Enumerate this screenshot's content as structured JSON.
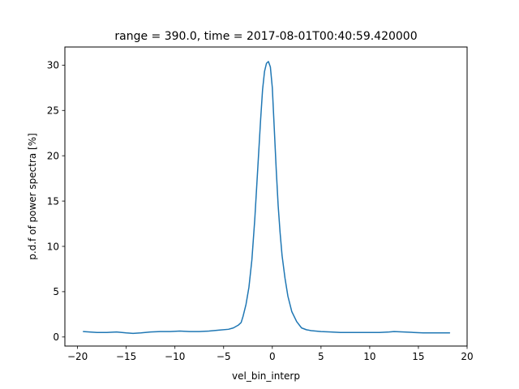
{
  "chart_data": {
    "type": "line",
    "title": "range = 390.0, time = 2017-08-01T00:40:59.420000",
    "xlabel": "vel_bin_interp",
    "ylabel": "p.d.f of power spectra [%]",
    "xlim": [
      -21.3,
      20.0
    ],
    "ylim": [
      -1.0,
      32.0
    ],
    "xticks": [
      -20,
      -15,
      -10,
      -5,
      0,
      5,
      10,
      15,
      20
    ],
    "xtick_labels": [
      "−20",
      "−15",
      "−10",
      "−5",
      "0",
      "5",
      "10",
      "15",
      "20"
    ],
    "yticks": [
      0,
      5,
      10,
      15,
      20,
      25,
      30
    ],
    "ytick_labels": [
      "0",
      "5",
      "10",
      "15",
      "20",
      "25",
      "30"
    ],
    "grid": false,
    "series": [
      {
        "name": "p.d.f",
        "color": "#1f77b4",
        "x": [
          -19.4,
          -18.0,
          -17.0,
          -16.0,
          -15.0,
          -14.3,
          -13.5,
          -12.5,
          -11.5,
          -10.5,
          -9.5,
          -8.5,
          -7.5,
          -6.5,
          -5.5,
          -4.5,
          -4.0,
          -3.5,
          -3.2,
          -3.0,
          -2.7,
          -2.4,
          -2.1,
          -1.8,
          -1.5,
          -1.2,
          -1.0,
          -0.8,
          -0.6,
          -0.4,
          -0.2,
          0.0,
          0.2,
          0.4,
          0.6,
          0.8,
          1.0,
          1.3,
          1.6,
          2.0,
          2.5,
          3.0,
          3.5,
          4.0,
          5.0,
          6.0,
          7.0,
          8.0,
          9.0,
          10.0,
          11.0,
          12.0,
          12.5,
          13.5,
          14.5,
          15.5,
          16.5,
          17.5,
          18.2
        ],
        "y": [
          0.6,
          0.5,
          0.5,
          0.55,
          0.45,
          0.4,
          0.45,
          0.55,
          0.6,
          0.6,
          0.65,
          0.6,
          0.6,
          0.65,
          0.75,
          0.85,
          1.0,
          1.3,
          1.6,
          2.3,
          3.6,
          5.5,
          8.5,
          13.0,
          18.5,
          24.0,
          27.3,
          29.3,
          30.2,
          30.4,
          29.8,
          27.5,
          23.0,
          18.5,
          14.5,
          11.5,
          9.0,
          6.5,
          4.5,
          2.8,
          1.7,
          1.0,
          0.8,
          0.7,
          0.6,
          0.55,
          0.5,
          0.5,
          0.5,
          0.5,
          0.5,
          0.55,
          0.6,
          0.55,
          0.5,
          0.45,
          0.45,
          0.45,
          0.45
        ]
      }
    ]
  }
}
